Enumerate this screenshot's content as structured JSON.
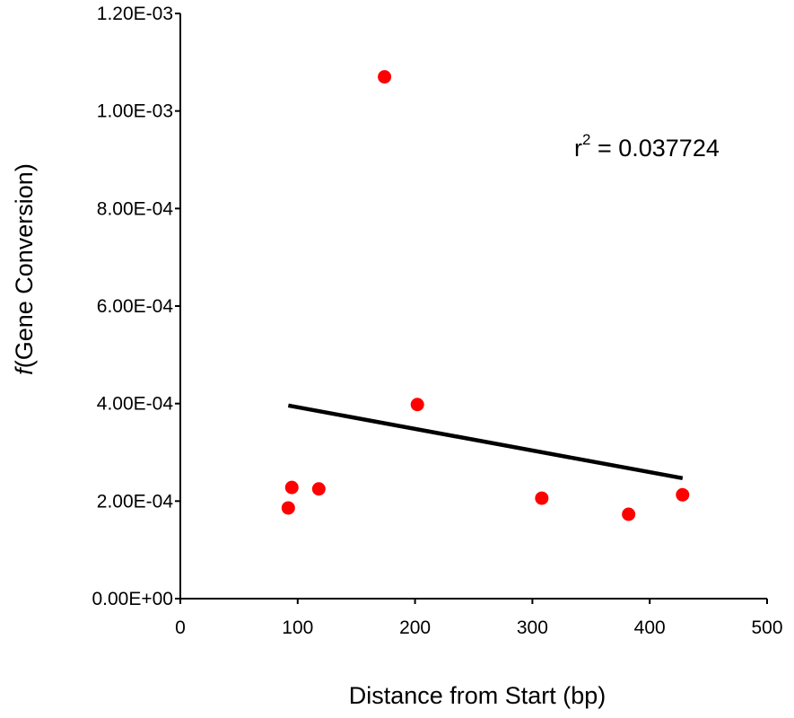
{
  "chart_data": {
    "type": "scatter",
    "title": "",
    "xlabel": "Distance from Start (bp)",
    "ylabel_prefix": "f",
    "ylabel_rest": "(Gene Conversion)",
    "xlim": [
      0,
      500
    ],
    "ylim": [
      0,
      0.0012
    ],
    "xticks": [
      0,
      100,
      200,
      300,
      400,
      500
    ],
    "xtick_labels": [
      "0",
      "100",
      "200",
      "300",
      "400",
      "500"
    ],
    "yticks": [
      0,
      0.0002,
      0.0004,
      0.0006,
      0.0008,
      0.001,
      0.0012
    ],
    "ytick_labels": [
      "0.00E+00",
      "2.00E-04",
      "4.00E-04",
      "6.00E-04",
      "8.00E-04",
      "1.00E-03",
      "1.20E-03"
    ],
    "grid": false,
    "marker_color": "#ff0000",
    "trendline_color": "#000000",
    "points": [
      {
        "x": 92,
        "y": 0.000186
      },
      {
        "x": 95,
        "y": 0.000228
      },
      {
        "x": 118,
        "y": 0.000225
      },
      {
        "x": 174,
        "y": 0.00107
      },
      {
        "x": 202,
        "y": 0.000398
      },
      {
        "x": 308,
        "y": 0.000206
      },
      {
        "x": 382,
        "y": 0.000173
      },
      {
        "x": 428,
        "y": 0.000213
      }
    ],
    "trendline": {
      "x1": 92,
      "y1": 0.000396,
      "x2": 428,
      "y2": 0.000247
    },
    "annotation": {
      "base": "r",
      "sup": "2",
      "rest": " = 0.037724"
    }
  }
}
